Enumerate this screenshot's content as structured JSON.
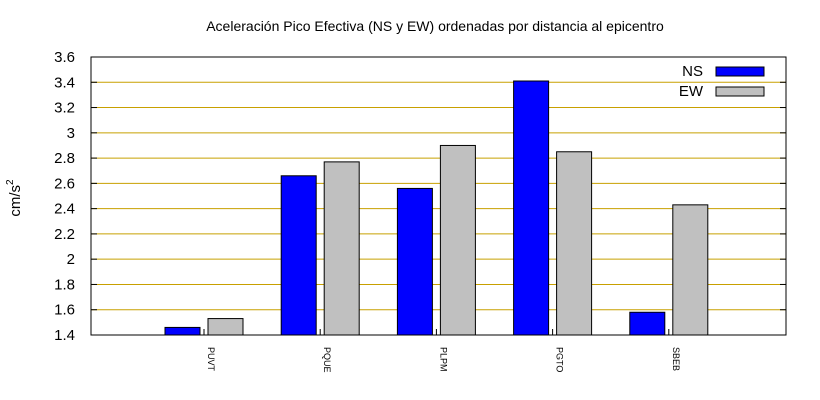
{
  "chart_data": {
    "type": "bar",
    "title": "Aceleración Pico Efectiva (NS y EW) ordenadas por distancia al epicentro",
    "ylabel": "cm/s",
    "ylabel_superscript": "2",
    "xlabel": "",
    "categories": [
      "PUVT",
      "PQUE",
      "PLPM",
      "PGTO",
      "SBEB"
    ],
    "ylim": [
      1.4,
      3.6
    ],
    "yticks": [
      "1.4",
      "1.6",
      "1.8",
      "2",
      "2.2",
      "2.4",
      "2.6",
      "2.8",
      "3",
      "3.2",
      "3.4",
      "3.6"
    ],
    "grid": true,
    "legend_position": "top-right",
    "series": [
      {
        "name": "NS",
        "values": [
          1.46,
          2.66,
          2.56,
          3.41,
          1.58
        ],
        "color": "#0000ff"
      },
      {
        "name": "EW",
        "values": [
          1.53,
          2.77,
          2.9,
          2.85,
          2.43
        ],
        "color": "#c0c0c0"
      }
    ],
    "grid_color": "#c8a000"
  }
}
